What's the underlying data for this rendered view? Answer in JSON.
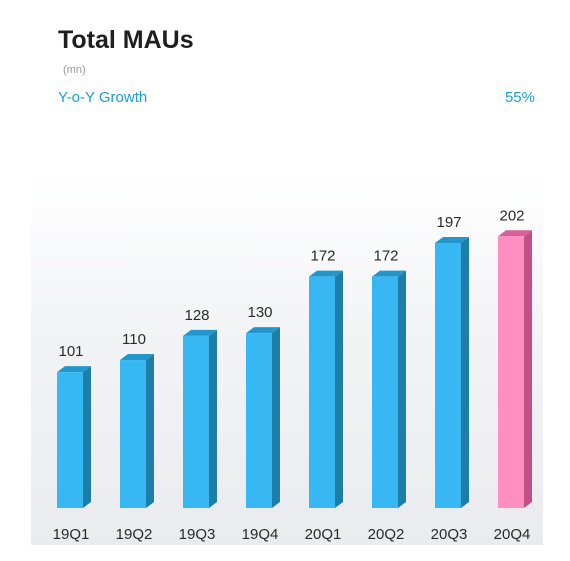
{
  "header": {
    "title": "Total MAUs",
    "unit": "(mn)",
    "growth_label": "Y-o-Y Growth",
    "growth_value": "55%"
  },
  "colors": {
    "bar_front": "#38b8f3",
    "bar_side": "#1e7eaa",
    "bar_top": "#2396cc",
    "highlight_front": "#ff8fc0",
    "highlight_side": "#c24f85",
    "highlight_top": "#d8609a",
    "text": "#2a2a2a",
    "accent": "#1aa0d8"
  },
  "chart_data": {
    "type": "bar",
    "categories": [
      "19Q1",
      "19Q2",
      "19Q3",
      "19Q4",
      "20Q1",
      "20Q2",
      "20Q3",
      "20Q4"
    ],
    "values": [
      101,
      110,
      128,
      130,
      172,
      172,
      197,
      202
    ],
    "highlight_index": 7,
    "title": "Total MAUs",
    "ylabel": "(mn)",
    "ylim": [
      0,
      210
    ],
    "grid": false
  }
}
